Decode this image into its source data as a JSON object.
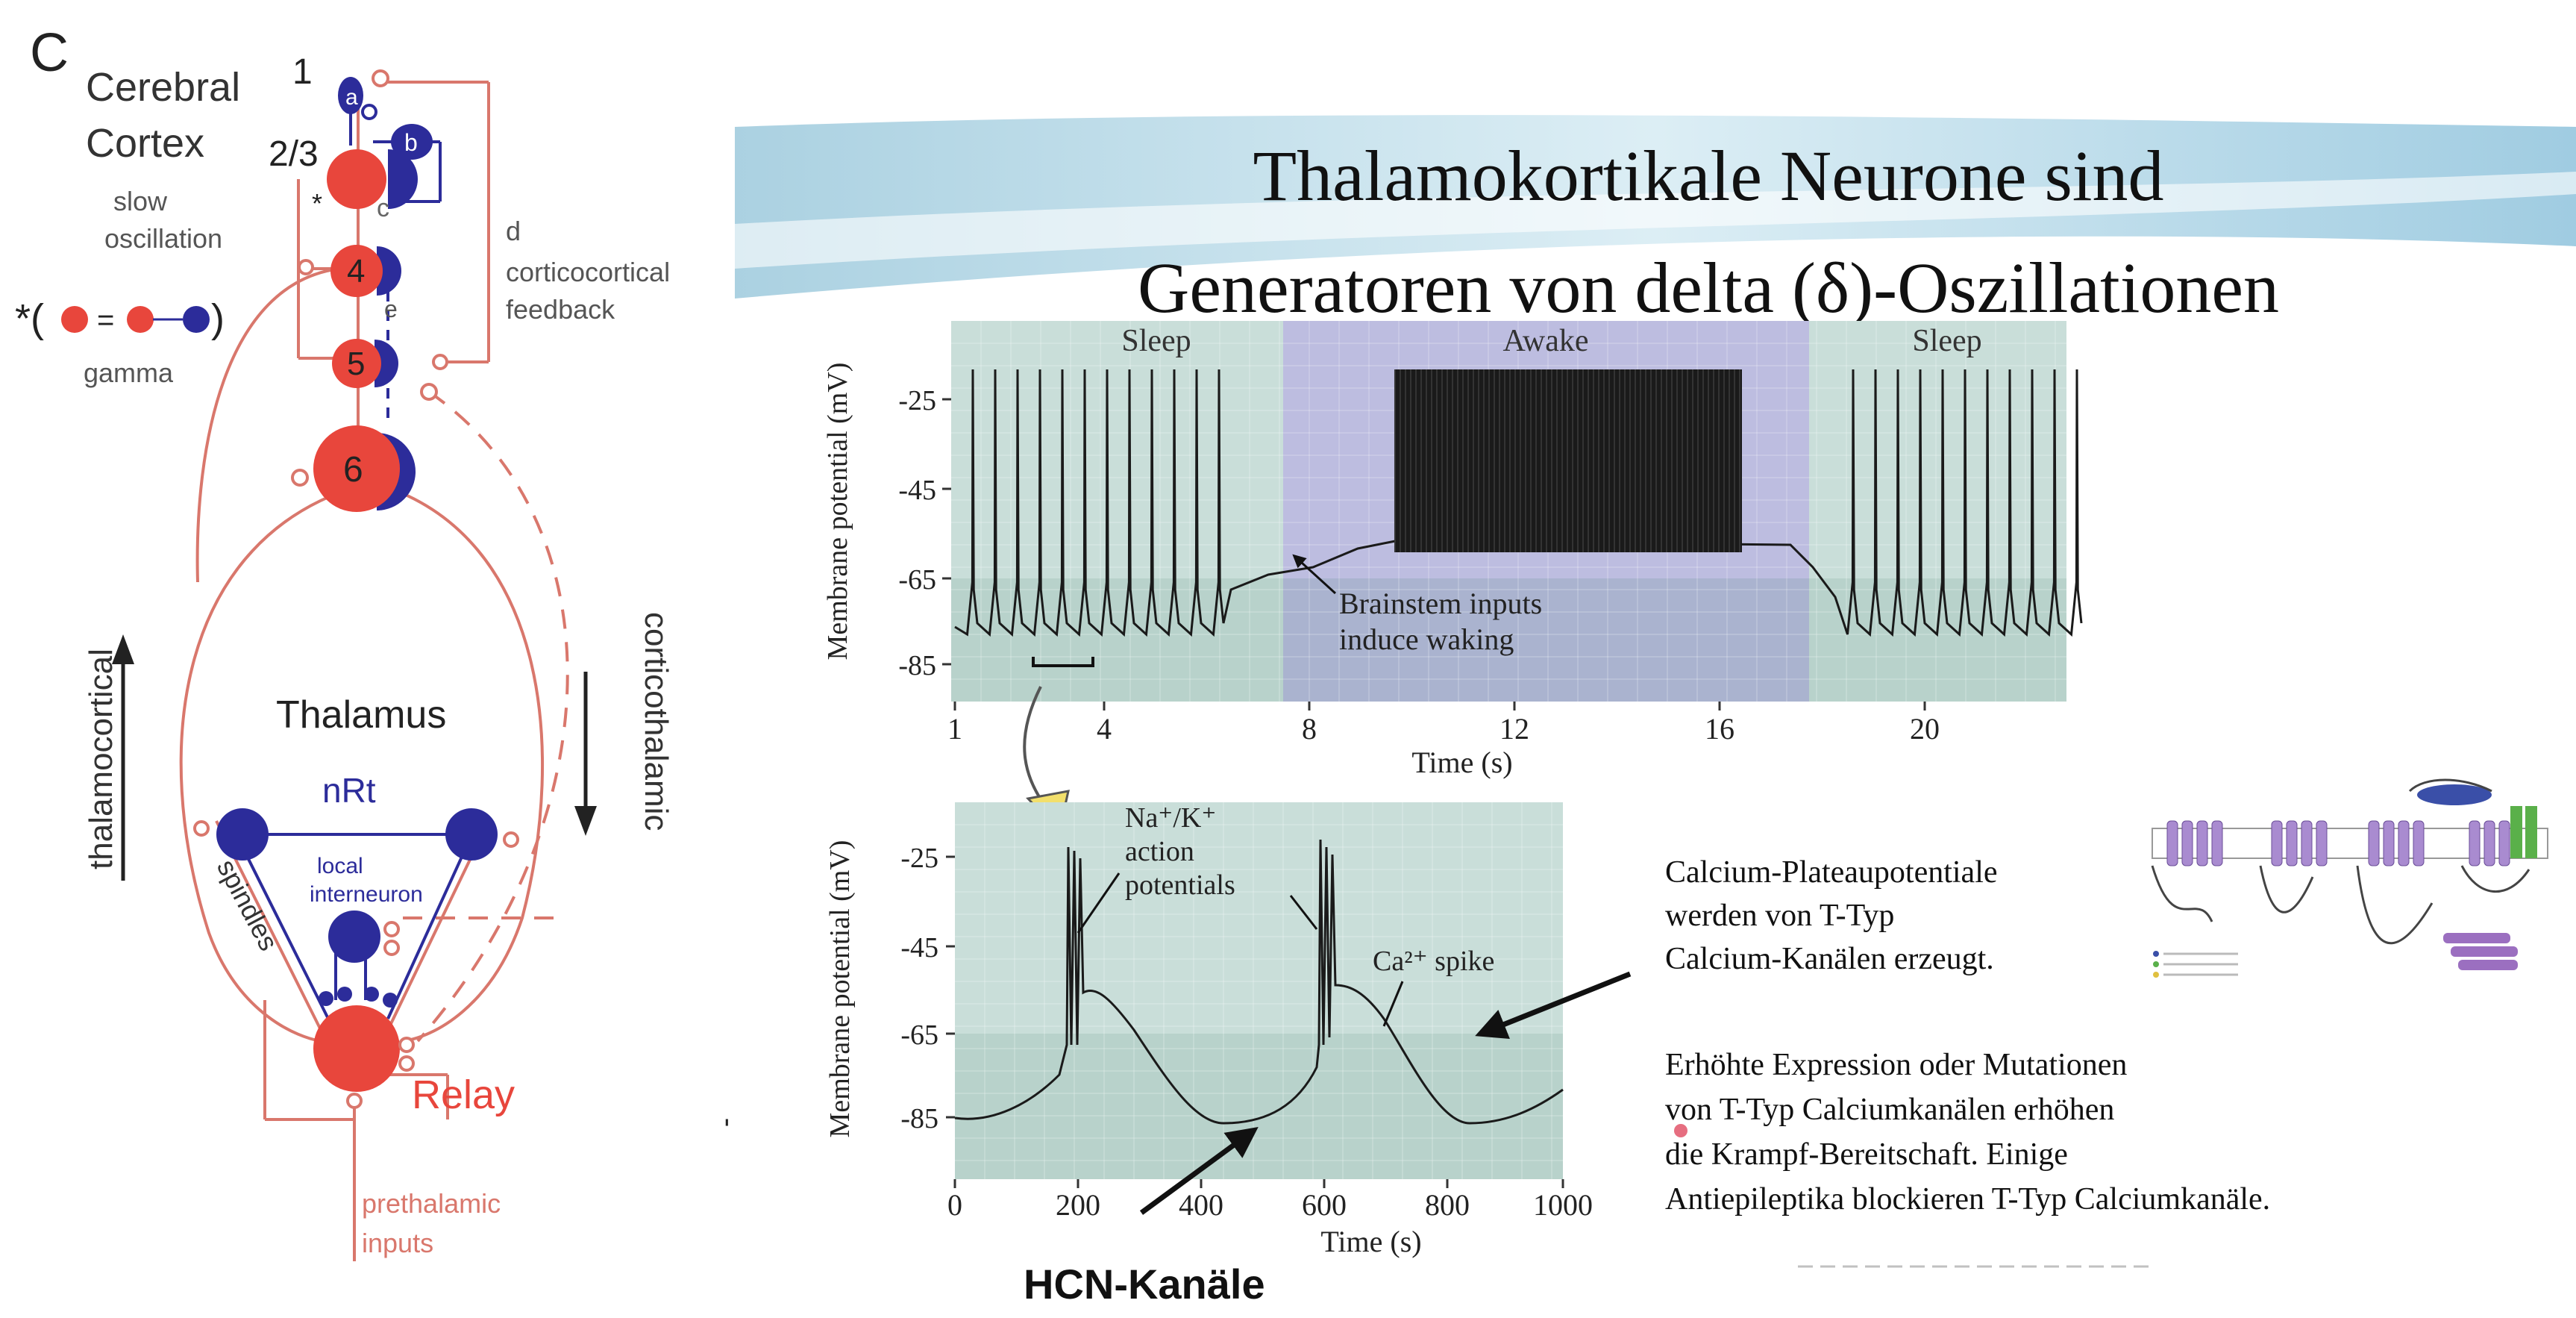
{
  "left_diagram": {
    "panel_letter": "C",
    "cortex_label_line1": "Cerebral",
    "cortex_label_line2": "Cortex",
    "layer_1": "1",
    "layer_23": "2/3",
    "layer_4": "4",
    "layer_5": "5",
    "layer_6": "6",
    "cell_a": "a",
    "cell_b": "b",
    "label_c": "c",
    "label_star": "*",
    "label_e": "e",
    "slow_osc_line1": "slow",
    "slow_osc_line2": "oscillation",
    "gamma_eq_star": "*(",
    "gamma_eq_close": ")",
    "gamma_eq_equals": "=",
    "gamma_label": "gamma",
    "label_d": "d",
    "cc_feedback_line1": "corticocortical",
    "cc_feedback_line2": "feedback",
    "thalamocortical": "thalamocortical",
    "corticothalamic": "corticothalamic",
    "thalamus": "Thalamus",
    "nrt": "nRt",
    "spindles": "spindles",
    "local_line1": "local",
    "local_line2": "interneuron",
    "relay": "Relay",
    "prethalamic_line1": "prethalamic",
    "prethalamic_line2": "inputs"
  },
  "slide": {
    "title_line1": "Thalamokortikale Neurone sind",
    "title_line2": "Generatoren von delta (δ)-Oszillationen",
    "top_plot": {
      "ylabel": "Membrane potential (mV)",
      "xlabel": "Time (s)",
      "yticks": [
        "-25",
        "-45",
        "-65",
        "-85"
      ],
      "xticks": [
        "1",
        "4",
        "8",
        "12",
        "16",
        "20"
      ],
      "region_sleep_left": "Sleep",
      "region_awake": "Awake",
      "region_sleep_right": "Sleep",
      "annotation_line1": "Brainstem inputs",
      "annotation_line2": "induce waking"
    },
    "bottom_plot": {
      "ylabel": "Membrane potential (mV)",
      "xlabel": "Time (s)",
      "yticks": [
        "-25",
        "-45",
        "-65",
        "-85"
      ],
      "xticks": [
        "0",
        "200",
        "400",
        "600",
        "800",
        "1000"
      ],
      "ap_label_line1": "Na⁺/K⁺",
      "ap_label_line2": "action",
      "ap_label_line3": "potentials",
      "ca_label": "Ca²⁺ spike"
    },
    "text_block_1": [
      "Calcium-Plateaupotentiale",
      "werden von T-Typ",
      "Calcium-Kanälen erzeugt."
    ],
    "text_block_2": [
      "Erhöhte Expression oder Mutationen",
      "von T-Typ Calciumkanälen erhöhen",
      "die Krampf-Bereitschaft. Einige",
      "Antiepileptika blockieren T-Typ Calciumkanäle."
    ],
    "hcn_label": "HCN-Kanäle"
  },
  "colors": {
    "red": "#e8463c",
    "red_line": "#d9776c",
    "blue": "#2c2c9a",
    "plot_bg": "#c9ded9",
    "plot_bg_dark": "#a9c9c0",
    "awake_bg": "#bdbde0",
    "trace": "#1a1a1a"
  }
}
